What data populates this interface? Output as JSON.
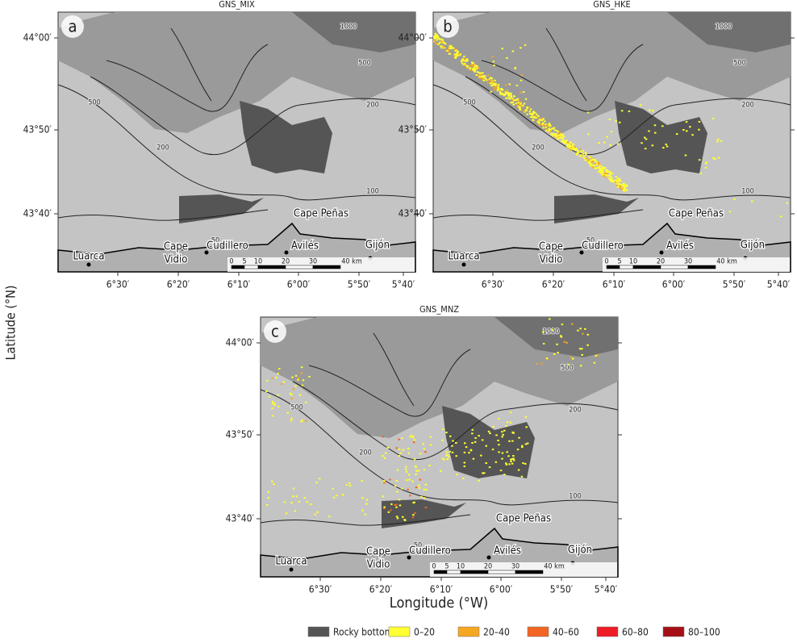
{
  "figure": {
    "panels": [
      {
        "letter": "a",
        "title": "GNS_MIX"
      },
      {
        "letter": "b",
        "title": "GNS_HKE"
      },
      {
        "letter": "c",
        "title": "GNS_MNZ"
      }
    ],
    "lat_ticks": [
      "44°00′",
      "43°50′",
      "43°40′"
    ],
    "lon_ticks": [
      "6°30′",
      "6°20′",
      "6°10′",
      "6°00′",
      "5°50′",
      "5°40′"
    ],
    "places": {
      "luarca": "Luarca",
      "cape_vidio": [
        "Cape",
        "Vidio"
      ],
      "cudillero": "Cudillero",
      "aviles": "Avilés",
      "gijon": "Gijón",
      "cape_penas": "Cape Peñas"
    },
    "contours": [
      "1000",
      "500",
      "200",
      "100",
      "50"
    ],
    "scale_bar": [
      "0",
      "5",
      "10",
      "20",
      "30",
      "40 km"
    ],
    "y_label": "Latitude (°N)",
    "x_label": "Longitude (°W)",
    "legend": [
      {
        "label": "Rocky bottom",
        "color": "#555555"
      },
      {
        "label": "0–20",
        "color": "#ffff33"
      },
      {
        "label": "20–40",
        "color": "#f5a623"
      },
      {
        "label": "40–60",
        "color": "#f26522"
      },
      {
        "label": "60–80",
        "color": "#ee1c25"
      },
      {
        "label": "80–100",
        "color": "#a50f15"
      }
    ]
  }
}
